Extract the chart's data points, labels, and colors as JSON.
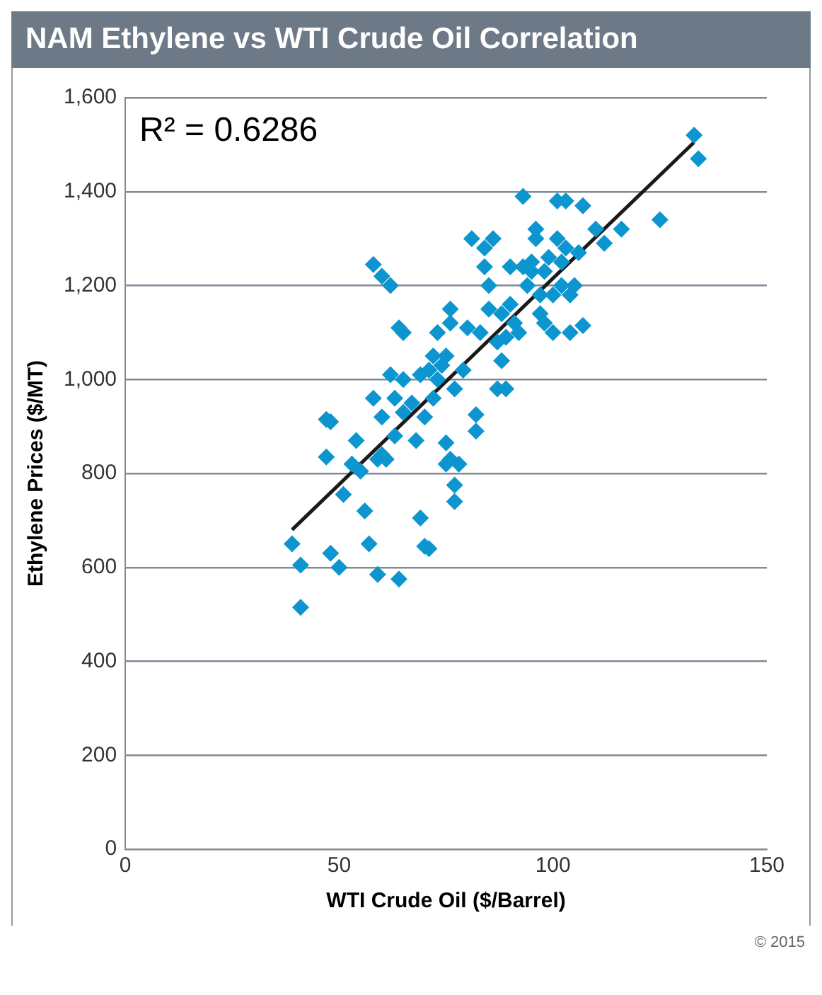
{
  "chart_data": {
    "type": "scatter",
    "title": "NAM Ethylene vs WTI Crude Oil Correlation",
    "xlabel": "WTI Crude Oil ($/Barrel)",
    "ylabel": "Ethylene Prices ($/MT)",
    "annotations": [
      "R² = 0.6286",
      "© 2015"
    ],
    "xlim": [
      0,
      150
    ],
    "xticks": [
      0,
      50,
      100,
      150
    ],
    "ylim": [
      0,
      1600
    ],
    "yticks": [
      0,
      200,
      400,
      600,
      800,
      {
        "value": 1000,
        "label": "1,000"
      },
      {
        "value": 1200,
        "label": "1,200"
      },
      {
        "value": 1400,
        "label": "1,400"
      },
      {
        "value": 1600,
        "label": "1,600"
      }
    ],
    "grid": "y",
    "legend": false,
    "marker": "diamond",
    "series": [
      {
        "color": "#0d95cf",
        "x": [
          39,
          41,
          41,
          47,
          48,
          47,
          48,
          50,
          51,
          53,
          54,
          55,
          56,
          57,
          58,
          58,
          59,
          59,
          60,
          60,
          60,
          61,
          62,
          62,
          63,
          63,
          64,
          64,
          65,
          65,
          65,
          67,
          68,
          69,
          69,
          70,
          70,
          71,
          71,
          72,
          72,
          73,
          73,
          74,
          75,
          75,
          75,
          76,
          76,
          76,
          77,
          77,
          77,
          78,
          79,
          80,
          81,
          82,
          82,
          83,
          84,
          84,
          85,
          85,
          86,
          87,
          87,
          88,
          88,
          89,
          89,
          90,
          90,
          91,
          92,
          93,
          93,
          94,
          95,
          95,
          96,
          96,
          97,
          97,
          98,
          98,
          99,
          100,
          100,
          101,
          101,
          102,
          102,
          103,
          103,
          104,
          104,
          105,
          106,
          107,
          107,
          110,
          112,
          116,
          125,
          133,
          134
        ],
        "values": [
          650,
          605,
          515,
          915,
          910,
          835,
          630,
          600,
          755,
          820,
          870,
          805,
          720,
          650,
          960,
          1245,
          830,
          585,
          1220,
          920,
          840,
          830,
          1010,
          1200,
          960,
          880,
          1110,
          575,
          1100,
          930,
          1000,
          950,
          870,
          705,
          1010,
          645,
          920,
          1020,
          640,
          960,
          1050,
          1100,
          1000,
          1030,
          1050,
          865,
          820,
          1120,
          1150,
          830,
          980,
          775,
          740,
          820,
          1020,
          1110,
          1300,
          890,
          925,
          1100,
          1240,
          1280,
          1200,
          1150,
          1300,
          1080,
          980,
          1140,
          1040,
          1090,
          980,
          1160,
          1240,
          1120,
          1100,
          1390,
          1240,
          1200,
          1250,
          1230,
          1300,
          1320,
          1140,
          1180,
          1120,
          1230,
          1260,
          1180,
          1100,
          1380,
          1300,
          1200,
          1250,
          1380,
          1280,
          1180,
          1100,
          1200,
          1270,
          1370,
          1115,
          1320,
          1290,
          1320,
          1340,
          1520,
          1470
        ]
      },
      {
        "type": "line",
        "color": "#1a1a1a",
        "marker": "none",
        "line_style": "solid",
        "x": [
          39,
          133
        ],
        "values": [
          680,
          1505
        ]
      }
    ]
  }
}
